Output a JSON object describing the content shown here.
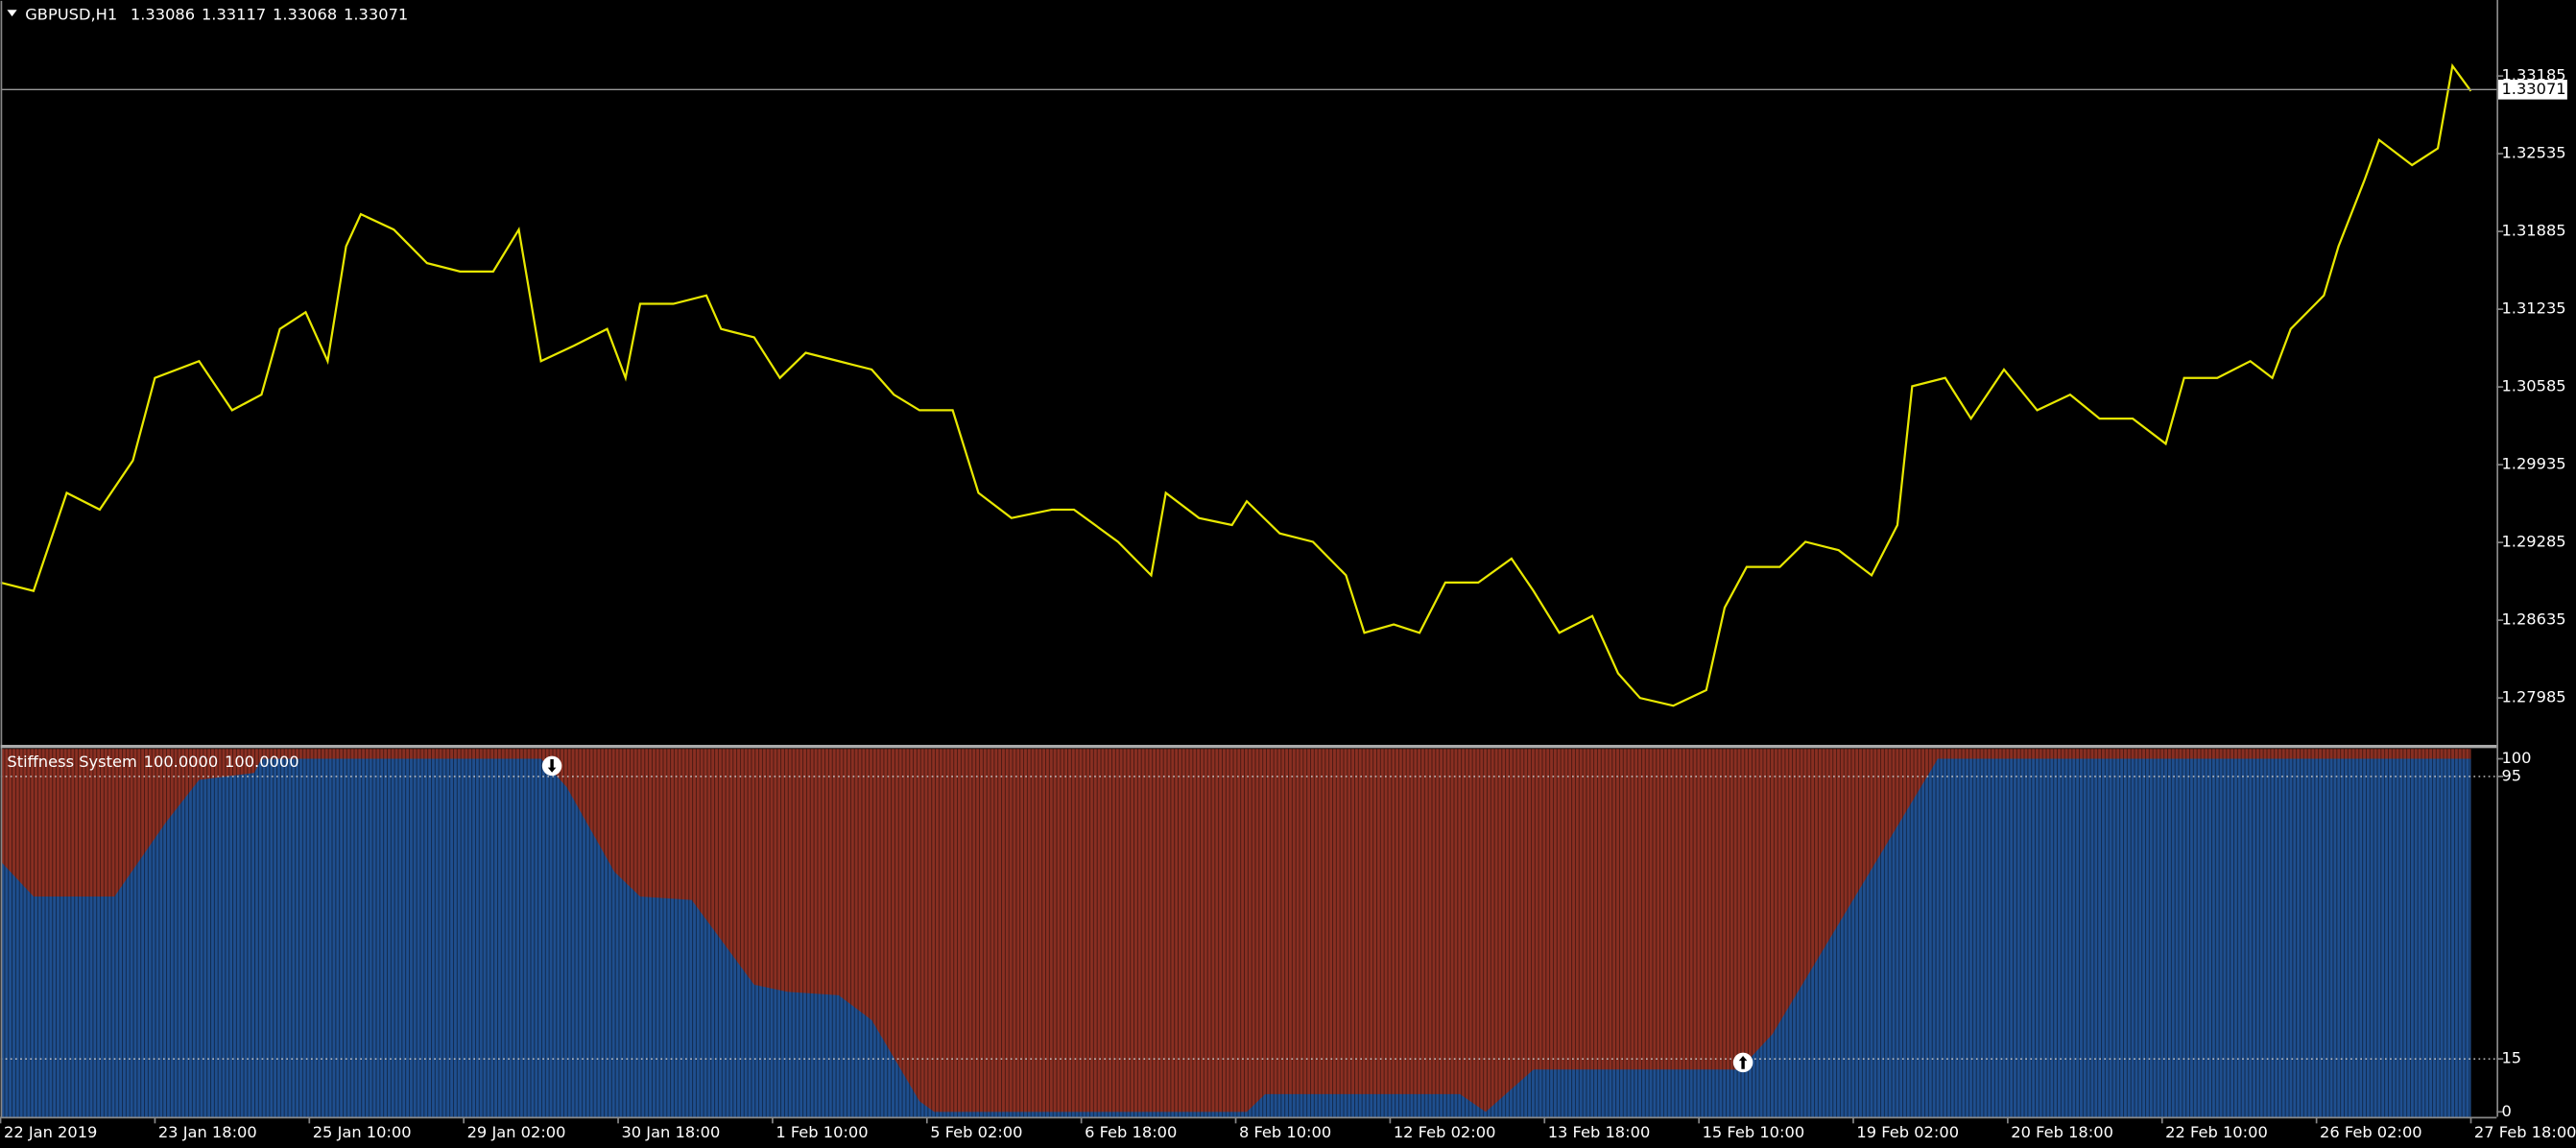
{
  "chart_data": [
    {
      "type": "line",
      "title": "GBPUSD,H1",
      "ohlc": [
        1.33086,
        1.33117,
        1.33068,
        1.33071
      ],
      "color": "#e8e800",
      "x": [
        0,
        9,
        18,
        27,
        36,
        42,
        54,
        63,
        71,
        76,
        83,
        89,
        94,
        98,
        107,
        116,
        125,
        134,
        141,
        147,
        156,
        165,
        170,
        174,
        183,
        192,
        196,
        205,
        212,
        219,
        228,
        237,
        243,
        250,
        259,
        266,
        275,
        286,
        292,
        304,
        313,
        317,
        326,
        335,
        339,
        348,
        357,
        366,
        371,
        379,
        386,
        393,
        402,
        411,
        417,
        424,
        433,
        440,
        446,
        455,
        464,
        469,
        475,
        484,
        491,
        500,
        509,
        516,
        520,
        529,
        536,
        545,
        554,
        563,
        571,
        580,
        589,
        594,
        603,
        612,
        618,
        623,
        632,
        636,
        643,
        647,
        656,
        663,
        667,
        672
      ],
      "values": [
        1.2895,
        1.2888,
        1.297,
        1.2956,
        1.2997,
        1.3066,
        1.308,
        1.3039,
        1.3052,
        1.3107,
        1.3121,
        1.308,
        1.3176,
        1.3203,
        1.319,
        1.3162,
        1.3155,
        1.3155,
        1.319,
        1.308,
        1.3093,
        1.3107,
        1.3066,
        1.3128,
        1.3128,
        1.3135,
        1.3107,
        1.31,
        1.3066,
        1.3087,
        1.308,
        1.3073,
        1.3052,
        1.3039,
        1.3039,
        1.297,
        1.2949,
        1.2956,
        1.2956,
        1.2929,
        1.2901,
        1.297,
        1.2949,
        1.2943,
        1.2963,
        1.2936,
        1.2929,
        1.2901,
        1.2853,
        1.286,
        1.2853,
        1.2895,
        1.2895,
        1.2915,
        1.2888,
        1.2853,
        1.2867,
        1.2819,
        1.27985,
        1.2792,
        1.2805,
        1.2874,
        1.2908,
        1.2908,
        1.2929,
        1.2922,
        1.2901,
        1.2943,
        1.3059,
        1.3066,
        1.3032,
        1.3073,
        1.3039,
        1.3052,
        1.3032,
        1.3032,
        1.3011,
        1.3066,
        1.3066,
        1.308,
        1.3066,
        1.3107,
        1.3135,
        1.3176,
        1.3231,
        1.3265,
        1.3244,
        1.3258,
        1.3327,
        1.3306
      ],
      "xlim": [
        0,
        679
      ],
      "ylim": [
        1.276,
        1.3382
      ],
      "yticks": [
        1.33185,
        1.32535,
        1.31885,
        1.31235,
        1.30585,
        1.29935,
        1.29285,
        1.28635,
        1.27985
      ],
      "current_price": 1.33071
    },
    {
      "type": "area",
      "title": "Stiffness System",
      "readout": [
        {
          "value": 100,
          "label": "100.0000"
        },
        {
          "value": 100,
          "label": "100.0000"
        }
      ],
      "color": "#1f4f8f",
      "color_above": "#8a2f22",
      "x": [
        0,
        9,
        31,
        45,
        54,
        69,
        71,
        147,
        154,
        167,
        174,
        188,
        205,
        214,
        228,
        237,
        250,
        254,
        339,
        344,
        397,
        404,
        417,
        473,
        482,
        527,
        672
      ],
      "values": [
        71,
        61,
        61,
        82,
        94,
        96,
        100,
        100,
        92,
        68,
        61,
        60,
        36,
        34,
        33,
        26,
        3,
        0,
        0,
        5,
        5,
        0,
        12,
        12,
        22,
        100,
        100
      ],
      "xlim": [
        0,
        679
      ],
      "ylim": [
        -1.4,
        102.8
      ],
      "yticks": [
        100,
        95,
        15,
        0
      ],
      "levels": [
        95,
        15
      ],
      "down_signals": [
        {
          "x": 150,
          "y": 98
        }
      ],
      "up_signals": [
        {
          "x": 474,
          "y": 14
        }
      ],
      "xticks": [
        {
          "value": 0,
          "label": "22 Jan 2019"
        },
        {
          "value": 42,
          "label": "23 Jan 18:00"
        },
        {
          "value": 84,
          "label": "25 Jan 10:00"
        },
        {
          "value": 126,
          "label": "29 Jan 02:00"
        },
        {
          "value": 168,
          "label": "30 Jan 18:00"
        },
        {
          "value": 210,
          "label": "1 Feb 10:00"
        },
        {
          "value": 252,
          "label": "5 Feb 02:00"
        },
        {
          "value": 294,
          "label": "6 Feb 18:00"
        },
        {
          "value": 336,
          "label": "8 Feb 10:00"
        },
        {
          "value": 378,
          "label": "12 Feb 02:00"
        },
        {
          "value": 420,
          "label": "13 Feb 18:00"
        },
        {
          "value": 462,
          "label": "15 Feb 10:00"
        },
        {
          "value": 504,
          "label": "19 Feb 02:00"
        },
        {
          "value": 546,
          "label": "20 Feb 18:00"
        },
        {
          "value": 588,
          "label": "22 Feb 10:00"
        },
        {
          "value": 630,
          "label": "26 Feb 02:00"
        },
        {
          "value": 672,
          "label": "27 Feb 18:00"
        }
      ]
    }
  ]
}
